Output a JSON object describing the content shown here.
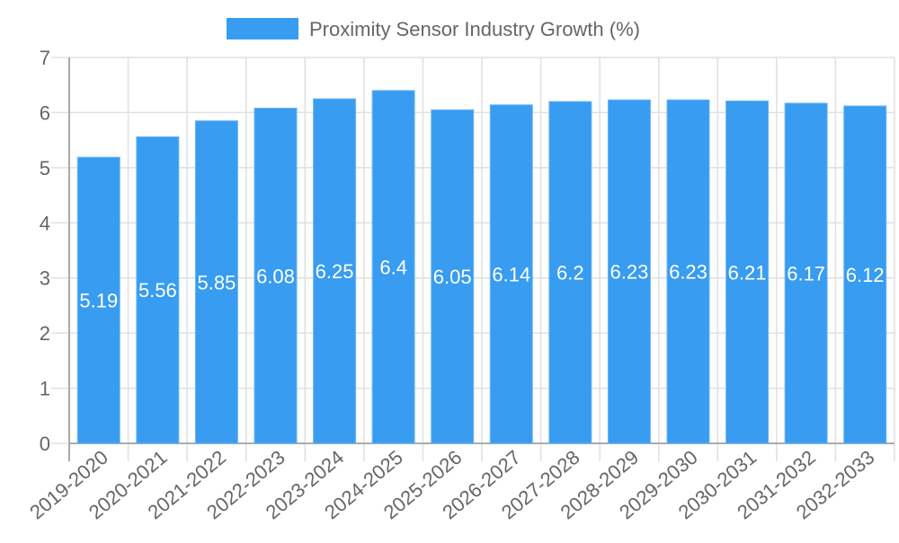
{
  "chart_data": {
    "type": "bar",
    "title": "",
    "legend": {
      "label": "Proximity Sensor Industry Growth (%)",
      "placement": "top-center"
    },
    "categories": [
      "2019-2020",
      "2020-2021",
      "2021-2022",
      "2022-2023",
      "2023-2024",
      "2024-2025",
      "2025-2026",
      "2026-2027",
      "2027-2028",
      "2028-2029",
      "2029-2030",
      "2030-2031",
      "2031-2032",
      "2032-2033"
    ],
    "series": [
      {
        "name": "Proximity Sensor Industry Growth (%)",
        "values": [
          5.19,
          5.56,
          5.85,
          6.08,
          6.25,
          6.4,
          6.05,
          6.14,
          6.2,
          6.23,
          6.23,
          6.21,
          6.17,
          6.12
        ]
      }
    ],
    "yticks": [
      "0",
      "1",
      "2",
      "3",
      "4",
      "5",
      "6",
      "7"
    ],
    "ylim": [
      0,
      7
    ],
    "xlabel": "",
    "ylabel": "",
    "grid": true,
    "colors": {
      "bar": "#389cf0",
      "bar_border": "#6cb6f5",
      "grid": "#e0e0e0",
      "axis": "#aaaaaa",
      "text": "#666666",
      "label": "#ffffff"
    }
  }
}
